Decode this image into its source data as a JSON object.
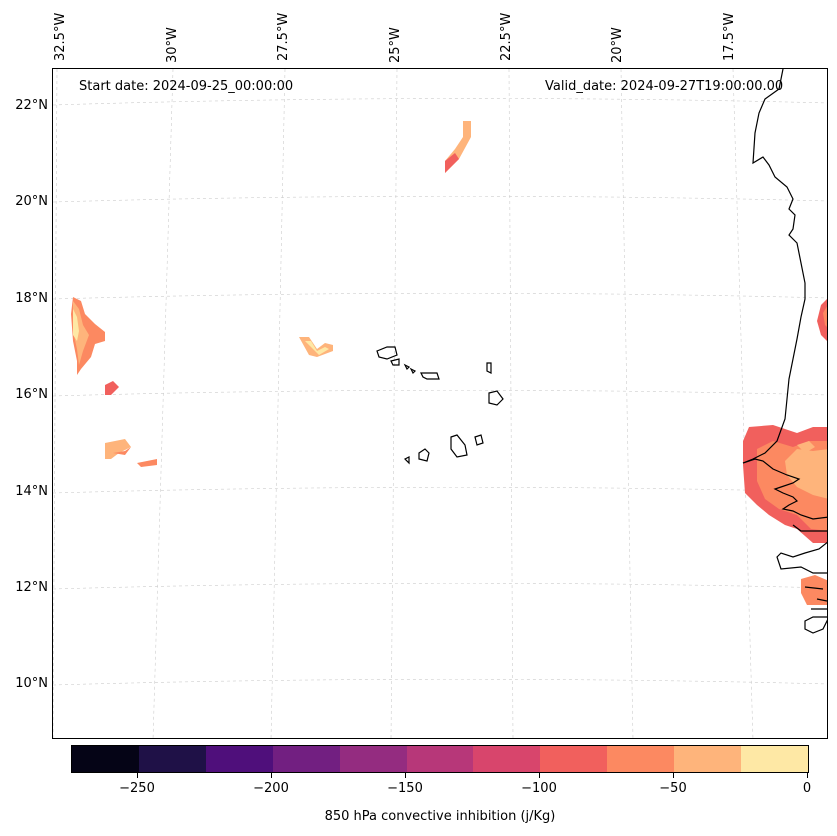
{
  "header": {
    "start_date": "Start date: 2024-09-25_00:00:00",
    "valid_date": "Valid_date: 2024-09-27T19:00:00.00"
  },
  "map": {
    "lon_labels": [
      "32.5°W",
      "30°W",
      "27.5°W",
      "25°W",
      "22.5°W",
      "20°W",
      "17.5°W"
    ],
    "lat_labels": [
      "22°N",
      "20°N",
      "18°N",
      "16°N",
      "14°N",
      "12°N",
      "10°N"
    ],
    "extent": {
      "lon": [
        -32.6,
        -16.0
      ],
      "lat": [
        8.9,
        22.8
      ]
    },
    "gridlines": true,
    "coastline_color": "#000000",
    "gridline_color": "#cccccc",
    "land_regions": [
      "Cape Verde islands",
      "West African coast (Mauritania, Senegal, Gambia, Guinea-Bissau)"
    ]
  },
  "colorbar": {
    "colormap": "magma",
    "levels": [
      -275,
      -250,
      -225,
      -200,
      -175,
      -150,
      -125,
      -100,
      -75,
      -50,
      -25,
      0
    ],
    "tick_labels": [
      "−250",
      "−200",
      "−150",
      "−100",
      "−50",
      "0"
    ],
    "colors": [
      "#050416",
      "#1f1147",
      "#4f0f7b",
      "#721f81",
      "#942c80",
      "#b73779",
      "#d8456c",
      "#f1605d",
      "#fc8961",
      "#feb47b",
      "#fee8a5"
    ],
    "label": "850 hPa convective inhibition (j/Kg)"
  }
}
